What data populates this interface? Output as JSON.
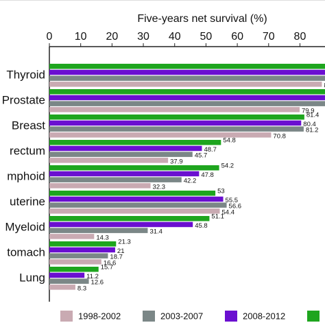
{
  "chart_data": {
    "type": "hbar",
    "title": "Five-years net survival (%)",
    "categories": [
      "Thyroid",
      "Prostate",
      "Breast",
      "rectum",
      "mphoid",
      "uterine",
      "Myeloid",
      "tomach",
      "Lung"
    ],
    "series": [
      {
        "name": "1998-2002",
        "color": "#c9aab2",
        "values": [
          87,
          79.9,
          70.8,
          37.9,
          32.3,
          54.4,
          14.3,
          16.6,
          8.3
        ]
      },
      {
        "name": "2003-2007",
        "color": "#7b8787",
        "values": [
          89,
          89,
          81.2,
          45.7,
          42.2,
          56.6,
          31.4,
          18.7,
          12.6
        ]
      },
      {
        "name": "2008-2012",
        "color": "#6a0fd0",
        "values": [
          90,
          90,
          80.4,
          48.7,
          47.8,
          55.5,
          45.8,
          21,
          11.2
        ]
      },
      {
        "color": "#1ea51e",
        "values": [
          91,
          90,
          81.4,
          54.8,
          54.2,
          53,
          51.1,
          21.3,
          15.7
        ]
      }
    ],
    "xlim": [
      0,
      88
    ],
    "xticks": [
      0,
      10,
      20,
      30,
      40,
      50,
      60,
      70,
      80
    ]
  }
}
